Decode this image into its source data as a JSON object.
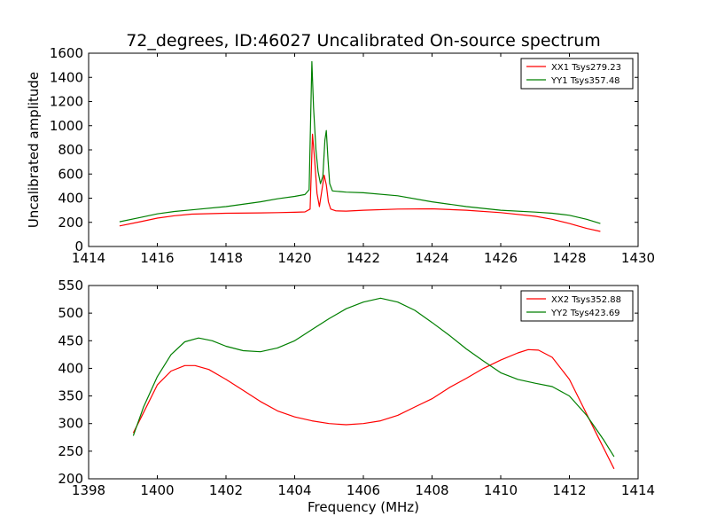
{
  "title": "72_degrees, ID:46027 Uncalibrated On-source spectrum",
  "colors": {
    "red": "#ff0000",
    "green": "#007f00"
  },
  "chart_data": [
    {
      "type": "line",
      "title": "72_degrees, ID:46027 Uncalibrated On-source spectrum",
      "xlabel": "",
      "ylabel": "Uncalibrated amplitude",
      "xlim": [
        1414,
        1430
      ],
      "ylim": [
        0,
        1600
      ],
      "xticks": [
        "1414",
        "1416",
        "1418",
        "1420",
        "1422",
        "1424",
        "1426",
        "1428",
        "1430"
      ],
      "yticks": [
        "0",
        "200",
        "400",
        "600",
        "800",
        "1000",
        "1200",
        "1400",
        "1600"
      ],
      "legend_position": "top-right",
      "series": [
        {
          "name": "XX1 Tsys279.23",
          "color": "#ff0000",
          "x": [
            1414.9,
            1415.5,
            1416,
            1416.5,
            1417,
            1418,
            1419,
            1419.5,
            1420,
            1420.3,
            1420.45,
            1420.52,
            1420.58,
            1420.65,
            1420.72,
            1420.8,
            1420.86,
            1420.92,
            1420.98,
            1421.05,
            1421.2,
            1421.5,
            1422,
            1423,
            1424,
            1425,
            1426,
            1427,
            1427.5,
            1428,
            1428.5,
            1428.9
          ],
          "y": [
            170,
            205,
            235,
            255,
            268,
            275,
            278,
            280,
            283,
            286,
            310,
            930,
            720,
            440,
            330,
            480,
            590,
            510,
            370,
            310,
            295,
            293,
            300,
            310,
            312,
            300,
            280,
            250,
            225,
            190,
            150,
            125
          ]
        },
        {
          "name": "YY1 Tsys357.48",
          "color": "#007f00",
          "x": [
            1414.9,
            1415.5,
            1416,
            1416.5,
            1417,
            1418,
            1419,
            1419.5,
            1420,
            1420.3,
            1420.42,
            1420.5,
            1420.55,
            1420.62,
            1420.68,
            1420.75,
            1420.82,
            1420.88,
            1420.92,
            1420.97,
            1421.02,
            1421.1,
            1421.3,
            1421.5,
            1422,
            1423,
            1424,
            1425,
            1426,
            1427,
            1427.5,
            1428,
            1428.5,
            1428.9
          ],
          "y": [
            205,
            240,
            270,
            290,
            303,
            330,
            370,
            395,
            415,
            430,
            470,
            1530,
            1150,
            800,
            620,
            520,
            580,
            880,
            960,
            720,
            520,
            460,
            455,
            450,
            445,
            420,
            370,
            330,
            300,
            285,
            275,
            258,
            225,
            190
          ]
        }
      ]
    },
    {
      "type": "line",
      "title": "",
      "xlabel": "Frequency (MHz)",
      "ylabel": "",
      "xlim": [
        1398,
        1414
      ],
      "ylim": [
        200,
        550
      ],
      "xticks": [
        "1398",
        "1400",
        "1402",
        "1404",
        "1406",
        "1408",
        "1410",
        "1412",
        "1414"
      ],
      "yticks": [
        "200",
        "250",
        "300",
        "350",
        "400",
        "450",
        "500",
        "550"
      ],
      "legend_position": "top-right",
      "series": [
        {
          "name": "XX2 Tsys352.88",
          "color": "#ff0000",
          "x": [
            1399.3,
            1399.6,
            1400,
            1400.4,
            1400.8,
            1401.1,
            1401.5,
            1402,
            1402.5,
            1403,
            1403.5,
            1404,
            1404.5,
            1405,
            1405.5,
            1406,
            1406.5,
            1407,
            1407.5,
            1408,
            1408.5,
            1409,
            1409.5,
            1410,
            1410.5,
            1410.8,
            1411.1,
            1411.5,
            1412,
            1412.4,
            1412.8,
            1413.3
          ],
          "y": [
            283,
            320,
            370,
            395,
            405,
            405,
            398,
            380,
            360,
            340,
            323,
            312,
            305,
            300,
            298,
            300,
            305,
            315,
            330,
            345,
            365,
            382,
            400,
            415,
            428,
            434,
            433,
            420,
            380,
            330,
            280,
            218
          ]
        },
        {
          "name": "YY2 Tsys423.69",
          "color": "#007f00",
          "x": [
            1399.3,
            1399.6,
            1400,
            1400.4,
            1400.8,
            1401.2,
            1401.6,
            1402,
            1402.5,
            1403,
            1403.5,
            1404,
            1404.5,
            1405,
            1405.5,
            1406,
            1406.5,
            1407,
            1407.5,
            1408,
            1408.5,
            1409,
            1409.5,
            1410,
            1410.5,
            1411,
            1411.5,
            1412,
            1412.5,
            1413,
            1413.3
          ],
          "y": [
            278,
            330,
            385,
            425,
            448,
            455,
            450,
            440,
            432,
            430,
            437,
            450,
            470,
            490,
            508,
            520,
            527,
            520,
            505,
            483,
            460,
            435,
            413,
            392,
            380,
            373,
            367,
            350,
            315,
            270,
            240
          ]
        }
      ]
    }
  ]
}
